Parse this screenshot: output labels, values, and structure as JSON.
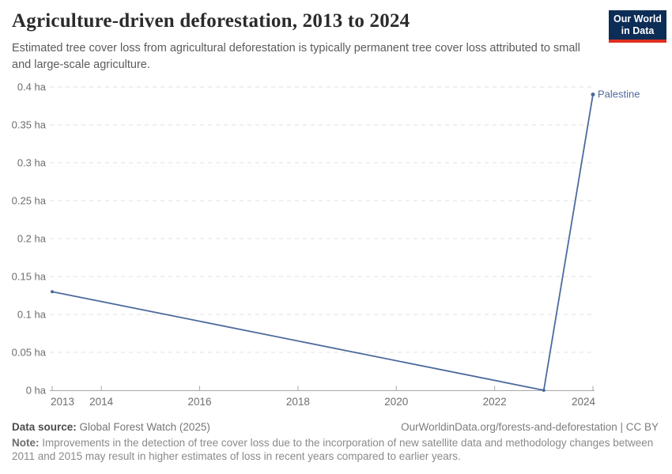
{
  "header": {
    "title": "Agriculture-driven deforestation, 2013 to 2024",
    "subtitle": "Estimated tree cover loss from agricultural deforestation is typically permanent tree cover loss attributed to small and large-scale agriculture.",
    "logo_line1": "Our World",
    "logo_line2": "in Data"
  },
  "chart_data": {
    "type": "line",
    "title": "Agriculture-driven deforestation, 2013 to 2024",
    "xlabel": "",
    "ylabel": "",
    "unit": "ha",
    "xlim": [
      2013,
      2024
    ],
    "ylim": [
      0,
      0.4
    ],
    "xticks": [
      2013,
      2014,
      2016,
      2018,
      2020,
      2022,
      2024
    ],
    "yticks": [
      0,
      0.05,
      0.1,
      0.15,
      0.2,
      0.25,
      0.3,
      0.35,
      0.4
    ],
    "grid": "dashed-horizontal",
    "legend_position": "end-of-line",
    "series": [
      {
        "name": "Palestine",
        "color": "#4c6a9c",
        "points": [
          {
            "x": 2013,
            "y": 0.13
          },
          {
            "x": 2023,
            "y": 0
          },
          {
            "x": 2024,
            "y": 0.39
          }
        ]
      }
    ]
  },
  "footer": {
    "datasource_label": "Data source:",
    "datasource_value": "Global Forest Watch (2025)",
    "link": "OurWorldinData.org/forests-and-deforestation | CC BY",
    "note_label": "Note:",
    "note_text": "Improvements in the detection of tree cover loss due to the incorporation of new satellite data and methodology changes between 2011 and 2015 may result in higher estimates of loss in recent years compared to earlier years."
  },
  "colors": {
    "line": "#4c6a9c",
    "series_label": "#4c6a9c",
    "grid": "#e2e2e2",
    "axis": "#a7a7a7",
    "tick_text": "#6e6e6e",
    "title": "#2b2b2b",
    "subtitle": "#5b5b5b",
    "logo_bg": "#0c2d56",
    "logo_stripe": "#dc2f1f",
    "background": "#ffffff"
  }
}
